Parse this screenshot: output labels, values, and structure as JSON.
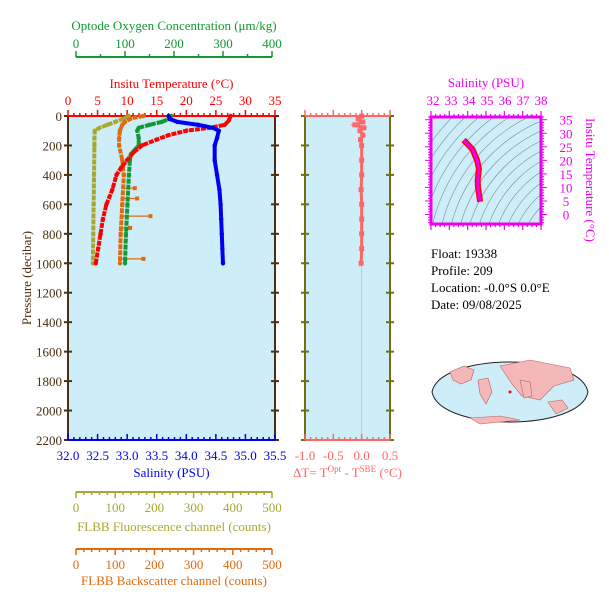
{
  "colors": {
    "temperature": "#ff0000",
    "salinity": "#0000ee",
    "oxygen": "#119933",
    "fluorescence": "#a8a830",
    "backscatter": "#e06a10",
    "deltaT": "#ff6666",
    "pressure": "#4a2f10",
    "ts": "#ee00ee",
    "plot_bg": "#cdeef8"
  },
  "info": {
    "float": "Float:  19338",
    "profile": "Profile:  209",
    "location": "Location:  -0.0°S   0.0°E",
    "date": "Date:  09/08/2025"
  },
  "chart_data": [
    {
      "type": "line",
      "title": "",
      "ylabel": "Pressure (decibar)",
      "ylim": [
        0,
        2200
      ],
      "yticks": [
        0,
        200,
        400,
        600,
        800,
        1000,
        1200,
        1400,
        1600,
        1800,
        2000,
        2200
      ],
      "y_inverted": true,
      "grid": false,
      "axes": {
        "temperature": {
          "label": "Insitu Temperature (°C)",
          "range": [
            0,
            35
          ],
          "ticks": [
            0,
            5,
            10,
            15,
            20,
            25,
            30,
            35
          ],
          "position": "top"
        },
        "oxygen": {
          "label": "Optode Oxygen Concentration (μm/kg)",
          "range": [
            0,
            400
          ],
          "ticks": [
            0,
            100,
            200,
            300,
            400
          ],
          "position": "top"
        },
        "salinity": {
          "label": "Salinity (PSU)",
          "range": [
            32.0,
            35.5
          ],
          "ticks": [
            "32.0",
            "32.5",
            "33.0",
            "33.5",
            "34.0",
            "34.5",
            "35.0",
            "35.5"
          ],
          "position": "bottom"
        },
        "fluorescence": {
          "label": "FLBB Fluorescence channel (counts)",
          "range": [
            0,
            500
          ],
          "ticks": [
            0,
            100,
            200,
            300,
            400,
            500
          ],
          "position": "bottom"
        },
        "backscatter": {
          "label": "FLBB Backscatter channel (counts)",
          "range": [
            0,
            500
          ],
          "ticks": [
            0,
            100,
            200,
            300,
            400,
            500
          ],
          "position": "bottom"
        }
      },
      "series": [
        {
          "axis": "temperature",
          "pressure": [
            0,
            30,
            60,
            80,
            100,
            130,
            160,
            200,
            250,
            300,
            350,
            400,
            500,
            600,
            700,
            800,
            900,
            1000
          ],
          "values": [
            27.5,
            27.2,
            26.5,
            24,
            20,
            17,
            15,
            12.5,
            11,
            10,
            9,
            8.2,
            7.5,
            6.5,
            5.9,
            5.5,
            5.1,
            4.7
          ]
        },
        {
          "axis": "salinity",
          "pressure": [
            0,
            20,
            40,
            60,
            80,
            100,
            150,
            200,
            300,
            400,
            500,
            600,
            700,
            800,
            900,
            1000
          ],
          "values": [
            33.7,
            33.72,
            33.85,
            34.2,
            34.45,
            34.55,
            34.52,
            34.48,
            34.48,
            34.52,
            34.56,
            34.58,
            34.59,
            34.6,
            34.61,
            34.62
          ]
        },
        {
          "axis": "oxygen",
          "pressure": [
            0,
            20,
            40,
            60,
            80,
            100,
            150,
            200,
            230,
            260,
            300,
            400,
            600,
            800,
            1000
          ],
          "values": [
            195,
            190,
            175,
            150,
            128,
            125,
            128,
            128,
            120,
            112,
            110,
            108,
            105,
            102,
            100
          ]
        },
        {
          "axis": "fluorescence",
          "pressure": [
            0,
            20,
            40,
            60,
            80,
            100,
            150,
            200,
            400,
            600,
            800,
            1000
          ],
          "values": [
            135,
            120,
            100,
            80,
            60,
            48,
            47,
            47,
            46,
            45,
            44,
            43
          ]
        },
        {
          "axis": "backscatter",
          "pressure": [
            0,
            10,
            20,
            40,
            60,
            100,
            150,
            200,
            300,
            400,
            600,
            800,
            1000
          ],
          "values": [
            172,
            150,
            138,
            125,
            118,
            112,
            110,
            110,
            118,
            122,
            118,
            114,
            112
          ],
          "spikes": [
            [
              490,
              150
            ],
            [
              560,
              156
            ],
            [
              680,
              190
            ],
            [
              760,
              138
            ],
            [
              970,
              172
            ]
          ]
        }
      ]
    },
    {
      "type": "scatter",
      "title": "",
      "xlabel": "ΔT= T^Opt - T^SBE (°C)",
      "xlim": [
        -1.0,
        0.5
      ],
      "xticks": [
        "-1.0",
        "-0.5",
        "0.0",
        "0.5"
      ],
      "ylim": [
        0,
        2200
      ],
      "pressure": [
        0,
        20,
        40,
        60,
        80,
        100,
        130,
        160,
        200,
        300,
        400,
        500,
        600,
        700,
        800,
        900,
        1000
      ],
      "values": [
        0.0,
        -0.06,
        0.02,
        -0.12,
        0.04,
        -0.03,
        0.02,
        -0.02,
        0.0,
        0.0,
        0.0,
        -0.01,
        0.0,
        0.0,
        0.0,
        0.0,
        -0.01
      ]
    },
    {
      "type": "line",
      "title": "Salinity (PSU)",
      "xlabel": "Salinity (PSU)",
      "ylabel": "Insitu Temperature (°C)",
      "xlim": [
        32,
        38
      ],
      "ylim": [
        -3.5,
        36
      ],
      "xticks": [
        32,
        33,
        34,
        35,
        36,
        37,
        38
      ],
      "yticks": [
        0,
        5,
        10,
        15,
        20,
        25,
        30,
        35
      ],
      "salinity": [
        33.7,
        33.85,
        34.2,
        34.45,
        34.55,
        34.52,
        34.48,
        34.5,
        34.56,
        34.6,
        34.62
      ],
      "temperature": [
        27.5,
        26.5,
        24,
        20,
        17,
        15,
        12.5,
        10,
        7.5,
        5.5,
        4.7
      ]
    }
  ]
}
